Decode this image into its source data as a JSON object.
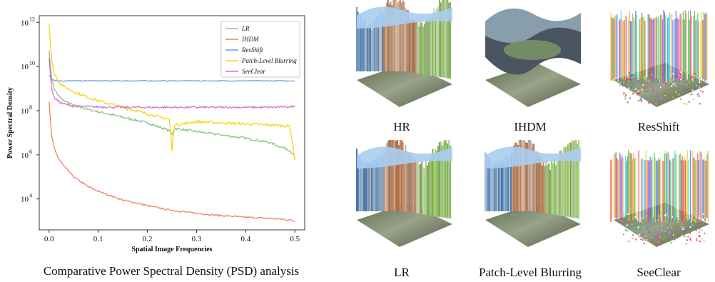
{
  "chart_data": {
    "type": "line",
    "title": "",
    "xlabel": "Spatial Image Frequencies",
    "ylabel": "Power Spectral Density",
    "y_scale": "log",
    "xlim": [
      -0.02,
      0.52
    ],
    "ylim_log10": [
      2.6,
      12.3
    ],
    "x_ticks": [
      0.0,
      0.1,
      0.2,
      0.3,
      0.4,
      0.5
    ],
    "x_tick_labels": [
      "0.0",
      "0.1",
      "0.2",
      "0.3",
      "0.4",
      "0.5"
    ],
    "y_ticks_log10": [
      4,
      6,
      8,
      10,
      12
    ],
    "y_tick_bases": [
      "10",
      "10",
      "10",
      "10",
      "10"
    ],
    "y_tick_exps": [
      "4",
      "6",
      "8",
      "10",
      "12"
    ],
    "grid": false,
    "legend_position": "top-right",
    "x": [
      0.0,
      0.005,
      0.01,
      0.02,
      0.03,
      0.05,
      0.08,
      0.1,
      0.15,
      0.2,
      0.245,
      0.25,
      0.255,
      0.3,
      0.35,
      0.4,
      0.45,
      0.49,
      0.5
    ],
    "series": [
      {
        "name": "LR",
        "color": "#8fbf88",
        "log10_values": [
          10.7,
          9.5,
          9.0,
          8.65,
          8.45,
          8.25,
          8.05,
          7.95,
          7.7,
          7.45,
          7.1,
          6.9,
          7.2,
          7.05,
          6.9,
          6.75,
          6.55,
          6.2,
          5.9
        ]
      },
      {
        "name": "IHDM",
        "color": "#f0826e",
        "log10_values": [
          8.4,
          6.9,
          6.3,
          5.8,
          5.5,
          5.0,
          4.55,
          4.35,
          3.95,
          3.7,
          3.5,
          3.5,
          3.47,
          3.35,
          3.25,
          3.17,
          3.12,
          3.05,
          3.0
        ]
      },
      {
        "name": "ResShift",
        "color": "#6b9be8",
        "log10_values": [
          9.6,
          9.45,
          9.38,
          9.35,
          9.35,
          9.35,
          9.35,
          9.35,
          9.35,
          9.35,
          9.35,
          9.35,
          9.35,
          9.35,
          9.35,
          9.35,
          9.35,
          9.35,
          9.35
        ]
      },
      {
        "name": "Patch-Level Blurring",
        "color": "#f6d40e",
        "log10_values": [
          11.9,
          10.3,
          9.7,
          9.3,
          9.1,
          8.85,
          8.6,
          8.45,
          8.15,
          7.85,
          7.6,
          6.2,
          7.35,
          7.5,
          7.45,
          7.4,
          7.35,
          7.3,
          5.8
        ]
      },
      {
        "name": "SeeClear",
        "color": "#d96fd0",
        "log10_values": [
          10.4,
          9.0,
          8.6,
          8.4,
          8.3,
          8.2,
          8.18,
          8.17,
          8.15,
          8.15,
          8.15,
          8.15,
          8.15,
          8.15,
          8.15,
          8.15,
          8.15,
          8.18,
          8.2
        ]
      }
    ]
  },
  "psd_caption": "Comparative Power Spectral Density (PSD) analysis",
  "thumbnails": [
    {
      "label": "HR",
      "style": "terrain"
    },
    {
      "label": "IHDM",
      "style": "smooth"
    },
    {
      "label": "ResShift",
      "style": "noise"
    },
    {
      "label": "LR",
      "style": "terrain"
    },
    {
      "label": "Patch-Level Blurring",
      "style": "terrain"
    },
    {
      "label": "SeeClear",
      "style": "noise"
    }
  ]
}
